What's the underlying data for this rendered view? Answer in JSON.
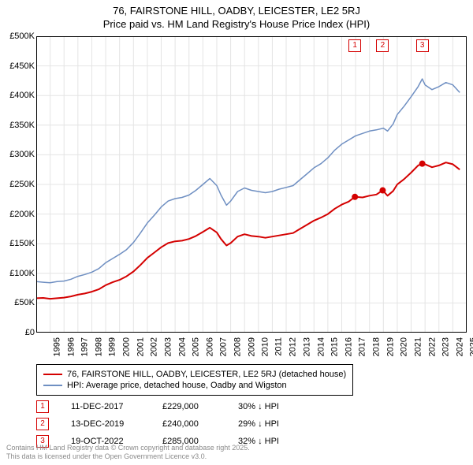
{
  "title": {
    "line1": "76, FAIRSTONE HILL, OADBY, LEICESTER, LE2 5RJ",
    "line2": "Price paid vs. HM Land Registry's House Price Index (HPI)"
  },
  "chart": {
    "type": "line",
    "background_color": "#ffffff",
    "grid_color": "#e4e4e4",
    "axis_color": "#000000",
    "x": {
      "min": 1995,
      "max": 2026,
      "ticks": [
        1995,
        1996,
        1997,
        1998,
        1999,
        2000,
        2001,
        2002,
        2003,
        2004,
        2005,
        2006,
        2007,
        2008,
        2009,
        2010,
        2011,
        2012,
        2013,
        2014,
        2015,
        2016,
        2017,
        2018,
        2019,
        2020,
        2021,
        2022,
        2023,
        2024,
        2025
      ],
      "label_fontsize": 11
    },
    "y": {
      "min": 0,
      "max": 500000,
      "ticks": [
        0,
        50000,
        100000,
        150000,
        200000,
        250000,
        300000,
        350000,
        400000,
        450000,
        500000
      ],
      "tick_labels": [
        "£0",
        "£50K",
        "£100K",
        "£150K",
        "£200K",
        "£250K",
        "£300K",
        "£350K",
        "£400K",
        "£450K",
        "£500K"
      ],
      "label_fontsize": 11
    },
    "series": [
      {
        "id": "hpi",
        "color": "#6f8fc2",
        "width": 1.5,
        "points": [
          [
            1995,
            86000
          ],
          [
            1995.5,
            85000
          ],
          [
            1996,
            84000
          ],
          [
            1996.5,
            86000
          ],
          [
            1997,
            87000
          ],
          [
            1997.5,
            90000
          ],
          [
            1998,
            95000
          ],
          [
            1998.5,
            98000
          ],
          [
            1999,
            102000
          ],
          [
            1999.5,
            108000
          ],
          [
            2000,
            118000
          ],
          [
            2000.5,
            125000
          ],
          [
            2001,
            132000
          ],
          [
            2001.5,
            140000
          ],
          [
            2002,
            152000
          ],
          [
            2002.5,
            168000
          ],
          [
            2003,
            185000
          ],
          [
            2003.5,
            198000
          ],
          [
            2004,
            212000
          ],
          [
            2004.5,
            222000
          ],
          [
            2005,
            226000
          ],
          [
            2005.5,
            228000
          ],
          [
            2006,
            232000
          ],
          [
            2006.5,
            240000
          ],
          [
            2007,
            250000
          ],
          [
            2007.5,
            260000
          ],
          [
            2008,
            248000
          ],
          [
            2008.3,
            232000
          ],
          [
            2008.7,
            215000
          ],
          [
            2009,
            222000
          ],
          [
            2009.5,
            238000
          ],
          [
            2010,
            244000
          ],
          [
            2010.5,
            240000
          ],
          [
            2011,
            238000
          ],
          [
            2011.5,
            236000
          ],
          [
            2012,
            238000
          ],
          [
            2012.5,
            242000
          ],
          [
            2013,
            245000
          ],
          [
            2013.5,
            248000
          ],
          [
            2014,
            258000
          ],
          [
            2014.5,
            268000
          ],
          [
            2015,
            278000
          ],
          [
            2015.5,
            285000
          ],
          [
            2016,
            295000
          ],
          [
            2016.5,
            308000
          ],
          [
            2017,
            318000
          ],
          [
            2017.5,
            325000
          ],
          [
            2018,
            332000
          ],
          [
            2018.5,
            336000
          ],
          [
            2019,
            340000
          ],
          [
            2019.5,
            342000
          ],
          [
            2020,
            345000
          ],
          [
            2020.3,
            340000
          ],
          [
            2020.7,
            352000
          ],
          [
            2021,
            368000
          ],
          [
            2021.5,
            382000
          ],
          [
            2022,
            398000
          ],
          [
            2022.5,
            415000
          ],
          [
            2022.8,
            428000
          ],
          [
            2023,
            418000
          ],
          [
            2023.5,
            410000
          ],
          [
            2024,
            415000
          ],
          [
            2024.5,
            422000
          ],
          [
            2025,
            418000
          ],
          [
            2025.5,
            405000
          ]
        ]
      },
      {
        "id": "price_paid",
        "color": "#d40000",
        "width": 2,
        "points": [
          [
            1995,
            58000
          ],
          [
            1995.5,
            58500
          ],
          [
            1996,
            57000
          ],
          [
            1996.5,
            58000
          ],
          [
            1997,
            59000
          ],
          [
            1997.5,
            61000
          ],
          [
            1998,
            64000
          ],
          [
            1998.5,
            66000
          ],
          [
            1999,
            69000
          ],
          [
            1999.5,
            73000
          ],
          [
            2000,
            80000
          ],
          [
            2000.5,
            85000
          ],
          [
            2001,
            89000
          ],
          [
            2001.5,
            95000
          ],
          [
            2002,
            103000
          ],
          [
            2002.5,
            114000
          ],
          [
            2003,
            126000
          ],
          [
            2003.5,
            135000
          ],
          [
            2004,
            144000
          ],
          [
            2004.5,
            151000
          ],
          [
            2005,
            154000
          ],
          [
            2005.5,
            155000
          ],
          [
            2006,
            158000
          ],
          [
            2006.5,
            163000
          ],
          [
            2007,
            170000
          ],
          [
            2007.5,
            177000
          ],
          [
            2008,
            169000
          ],
          [
            2008.3,
            158000
          ],
          [
            2008.7,
            147000
          ],
          [
            2009,
            151000
          ],
          [
            2009.5,
            162000
          ],
          [
            2010,
            166000
          ],
          [
            2010.5,
            163000
          ],
          [
            2011,
            162000
          ],
          [
            2011.5,
            160000
          ],
          [
            2012,
            162000
          ],
          [
            2012.5,
            164000
          ],
          [
            2013,
            166000
          ],
          [
            2013.5,
            168000
          ],
          [
            2014,
            175000
          ],
          [
            2014.5,
            182000
          ],
          [
            2015,
            189000
          ],
          [
            2015.5,
            194000
          ],
          [
            2016,
            200000
          ],
          [
            2016.5,
            209000
          ],
          [
            2017,
            216000
          ],
          [
            2017.5,
            221000
          ],
          [
            2017.95,
            229000
          ],
          [
            2018.5,
            228000
          ],
          [
            2019,
            231000
          ],
          [
            2019.5,
            233000
          ],
          [
            2019.95,
            240000
          ],
          [
            2020.3,
            231000
          ],
          [
            2020.7,
            239000
          ],
          [
            2021,
            250000
          ],
          [
            2021.5,
            259000
          ],
          [
            2022,
            270000
          ],
          [
            2022.5,
            282000
          ],
          [
            2022.8,
            285000
          ],
          [
            2023,
            284000
          ],
          [
            2023.5,
            279000
          ],
          [
            2024,
            282000
          ],
          [
            2024.5,
            287000
          ],
          [
            2025,
            284000
          ],
          [
            2025.5,
            275000
          ]
        ]
      }
    ],
    "sale_dots": [
      {
        "year": 2017.95,
        "price": 229000
      },
      {
        "year": 2019.95,
        "price": 240000
      },
      {
        "year": 2022.8,
        "price": 285000
      }
    ],
    "markers": [
      {
        "label": "1",
        "year": 2017.95,
        "color": "#d40000"
      },
      {
        "label": "2",
        "year": 2019.95,
        "color": "#d40000"
      },
      {
        "label": "3",
        "year": 2022.8,
        "color": "#d40000"
      }
    ]
  },
  "legend": {
    "items": [
      {
        "color": "#d40000",
        "label": "76, FAIRSTONE HILL, OADBY, LEICESTER, LE2 5RJ (detached house)"
      },
      {
        "color": "#6f8fc2",
        "label": "HPI: Average price, detached house, Oadby and Wigston"
      }
    ]
  },
  "sales": [
    {
      "num": "1",
      "color": "#d40000",
      "date": "11-DEC-2017",
      "price": "£229,000",
      "diff": "30% ↓ HPI"
    },
    {
      "num": "2",
      "color": "#d40000",
      "date": "13-DEC-2019",
      "price": "£240,000",
      "diff": "29% ↓ HPI"
    },
    {
      "num": "3",
      "color": "#d40000",
      "date": "19-OCT-2022",
      "price": "£285,000",
      "diff": "32% ↓ HPI"
    }
  ],
  "attribution": {
    "line1": "Contains HM Land Registry data © Crown copyright and database right 2025.",
    "line2": "This data is licensed under the Open Government Licence v3.0."
  }
}
